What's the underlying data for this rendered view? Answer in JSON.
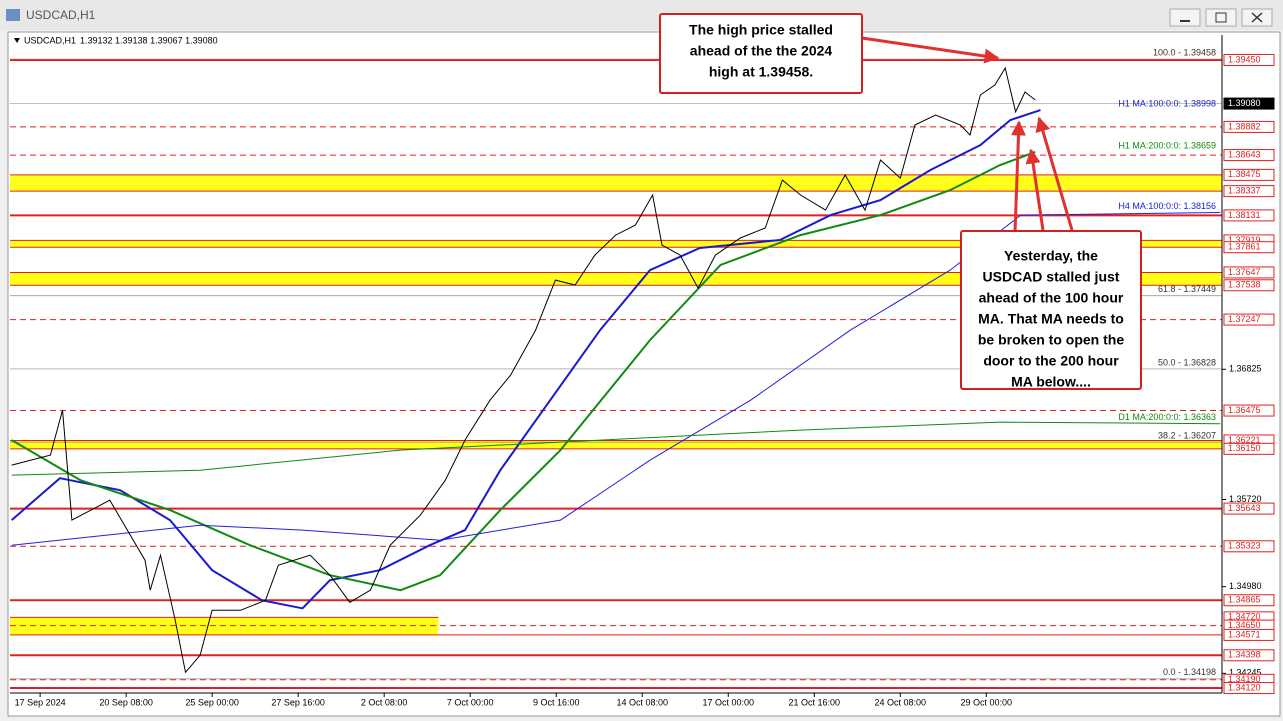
{
  "window_title": "USDCAD,H1",
  "chart_data": {
    "type": "line",
    "title": "USDCAD,H1",
    "quote": "1.39132 1.39138 1.39067 1.39080",
    "xlim": [
      -0.35,
      13.74
    ],
    "ylim": [
      1.34078,
      1.39662
    ],
    "xticks": [
      {
        "value": 0,
        "label": "17 Sep 2024"
      },
      {
        "value": 1,
        "label": "20 Sep 08:00"
      },
      {
        "value": 2,
        "label": "25 Sep 00:00"
      },
      {
        "value": 3,
        "label": "27 Sep 16:00"
      },
      {
        "value": 4,
        "label": "2 Oct 08:00"
      },
      {
        "value": 5,
        "label": "7 Oct 00:00"
      },
      {
        "value": 6,
        "label": "9 Oct 16:00"
      },
      {
        "value": 7,
        "label": "14 Oct 08:00"
      },
      {
        "value": 8,
        "label": "17 Oct 00:00"
      },
      {
        "value": 9,
        "label": "21 Oct 16:00"
      },
      {
        "value": 10,
        "label": "24 Oct 08:00"
      },
      {
        "value": 11,
        "label": "29 Oct 00:00"
      }
    ],
    "yticks": [
      {
        "value": 1.36825,
        "label": "1.36825"
      },
      {
        "value": 1.3572,
        "label": "1.35720"
      },
      {
        "value": 1.3498,
        "label": "1.34980"
      },
      {
        "value": 1.34245,
        "label": "1.34245"
      }
    ],
    "levels": [
      {
        "value": 1.3945,
        "label": "1.39450",
        "style": "solid"
      },
      {
        "value": 1.3908,
        "label": "1.39080",
        "style": "current"
      },
      {
        "value": 1.38882,
        "label": "1.38882",
        "style": "dashed"
      },
      {
        "value": 1.38643,
        "label": "1.38643",
        "style": "dashed"
      },
      {
        "value": 1.38475,
        "label": "1.38475",
        "style": "zone-top"
      },
      {
        "value": 1.38337,
        "label": "1.38337",
        "style": "zone-bottom"
      },
      {
        "value": 1.38131,
        "label": "1.38131",
        "style": "solid"
      },
      {
        "value": 1.37919,
        "label": "1.37919",
        "style": "zone-top"
      },
      {
        "value": 1.37861,
        "label": "1.37861",
        "style": "zone-bottom"
      },
      {
        "value": 1.37647,
        "label": "1.37647",
        "style": "zone-top"
      },
      {
        "value": 1.37538,
        "label": "1.37538",
        "style": "zone-bottom"
      },
      {
        "value": 1.37247,
        "label": "1.37247",
        "style": "dashed"
      },
      {
        "value": 1.36475,
        "label": "1.36475",
        "style": "dashed"
      },
      {
        "value": 1.36221,
        "label": "1.36221",
        "style": "zone-top"
      },
      {
        "value": 1.3615,
        "label": "1.36150",
        "style": "zone-bottom"
      },
      {
        "value": 1.35643,
        "label": "1.35643",
        "style": "solid"
      },
      {
        "value": 1.35323,
        "label": "1.35323",
        "style": "dashed"
      },
      {
        "value": 1.34865,
        "label": "1.34865",
        "style": "solid"
      },
      {
        "value": 1.3472,
        "label": "1.34720",
        "style": "zone-top",
        "until": 4.63
      },
      {
        "value": 1.3465,
        "label": "1.34650",
        "style": "dashed"
      },
      {
        "value": 1.34571,
        "label": "1.34571",
        "style": "zone-bottom"
      },
      {
        "value": 1.34398,
        "label": "1.34398",
        "style": "solid"
      },
      {
        "value": 1.3419,
        "label": "1.34190",
        "style": "dashed"
      },
      {
        "value": 1.3412,
        "label": "1.34120",
        "style": "solid"
      }
    ],
    "fib": [
      {
        "value": 1.39458,
        "label": "100.0 - 1.39458"
      },
      {
        "value": 1.37449,
        "label": "61.8 - 1.37449"
      },
      {
        "value": 1.36828,
        "label": "50.0 - 1.36828"
      },
      {
        "value": 1.36207,
        "label": "38.2 - 1.36207"
      },
      {
        "value": 1.34198,
        "label": "0.0 - 1.34198"
      }
    ],
    "price": {
      "color": "#000000",
      "x": [
        -0.33,
        0.12,
        0.26,
        0.37,
        0.81,
        1.22,
        1.28,
        1.4,
        1.57,
        1.69,
        1.86,
        2.0,
        2.33,
        2.62,
        2.77,
        3.14,
        3.37,
        3.6,
        3.84,
        4.07,
        4.42,
        4.71,
        4.94,
        5.23,
        5.47,
        5.76,
        5.99,
        6.22,
        6.45,
        6.69,
        6.92,
        7.12,
        7.23,
        7.44,
        7.65,
        7.85,
        8.14,
        8.43,
        8.63,
        8.84,
        9.13,
        9.36,
        9.59,
        9.77,
        10.0,
        10.17,
        10.41,
        10.7,
        10.81,
        10.93,
        11.1,
        11.22,
        11.34,
        11.45,
        11.57
      ],
      "values": [
        1.36012,
        1.36097,
        1.36479,
        1.35545,
        1.35714,
        1.35205,
        1.3495,
        1.35247,
        1.34696,
        1.34254,
        1.34398,
        1.3478,
        1.3478,
        1.34865,
        1.35163,
        1.35247,
        1.35078,
        1.34848,
        1.3495,
        1.35332,
        1.35587,
        1.35884,
        1.36224,
        1.36563,
        1.36776,
        1.37158,
        1.37582,
        1.3754,
        1.37794,
        1.37964,
        1.38049,
        1.38304,
        1.37879,
        1.37794,
        1.37514,
        1.37794,
        1.37939,
        1.38024,
        1.38431,
        1.38304,
        1.38176,
        1.38474,
        1.38176,
        1.38601,
        1.38448,
        1.38898,
        1.38983,
        1.38898,
        1.38813,
        1.39153,
        1.39238,
        1.39382,
        1.39009,
        1.39178,
        1.3911
      ]
    },
    "series": [
      {
        "name": "H1 MA:100:0:0: 1.38998",
        "color": "#1a1ad0",
        "width": 2,
        "x": [
          -0.33,
          0.23,
          0.93,
          1.51,
          2.0,
          2.58,
          3.05,
          3.37,
          3.95,
          4.53,
          4.94,
          5.35,
          5.93,
          6.51,
          7.09,
          7.67,
          8.6,
          9.19,
          9.77,
          10.35,
          10.93,
          11.28,
          11.63
        ],
        "values": [
          1.35545,
          1.35901,
          1.35799,
          1.35545,
          1.3512,
          1.34865,
          1.34797,
          1.35035,
          1.3512,
          1.35332,
          1.3546,
          1.35969,
          1.36563,
          1.37158,
          1.37667,
          1.37854,
          1.37922,
          1.38134,
          1.38261,
          1.38516,
          1.38728,
          1.38941,
          1.39025
        ]
      },
      {
        "name": "H1 MA:200:0:0: 1.38659",
        "color": "#108a10",
        "width": 2,
        "x": [
          -0.33,
          0.47,
          1.51,
          2.44,
          3.37,
          4.19,
          4.65,
          5.35,
          6.05,
          7.09,
          7.91,
          8.84,
          9.77,
          10.58,
          11.16,
          11.57
        ],
        "values": [
          1.36224,
          1.35884,
          1.3563,
          1.35332,
          1.35078,
          1.3495,
          1.35078,
          1.3563,
          1.36139,
          1.37073,
          1.3771,
          1.37964,
          1.38134,
          1.38346,
          1.38559,
          1.38669
        ]
      },
      {
        "name": "H4 MA:100:0:0: 1.38156",
        "color": "#2020d8",
        "width": 1,
        "x": [
          -0.33,
          1.86,
          3.05,
          4.65,
          6.05,
          7.09,
          8.26,
          9.42,
          10.58,
          11.4,
          13.72
        ],
        "values": [
          1.35332,
          1.35502,
          1.3546,
          1.35375,
          1.35545,
          1.36054,
          1.36563,
          1.37158,
          1.37667,
          1.38134,
          1.38156
        ]
      },
      {
        "name": "D1 MA:200:0:0: 1.36363",
        "color": "#108a10",
        "width": 1,
        "x": [
          -0.33,
          1.86,
          4.19,
          6.51,
          8.84,
          11.16,
          13.72
        ],
        "values": [
          1.35927,
          1.35969,
          1.36139,
          1.36224,
          1.36309,
          1.36377,
          1.36363
        ]
      }
    ],
    "annotations": [
      {
        "lines": [
          "The high price stalled",
          "ahead of the the 2024",
          "high at 1.39458."
        ]
      },
      {
        "lines": [
          "Yesterday, the",
          "USDCAD stalled just",
          "ahead of the 100 hour",
          "MA. That MA needs to",
          "be broken to open the",
          "door to the 200 hour",
          "MA below...."
        ]
      }
    ]
  }
}
